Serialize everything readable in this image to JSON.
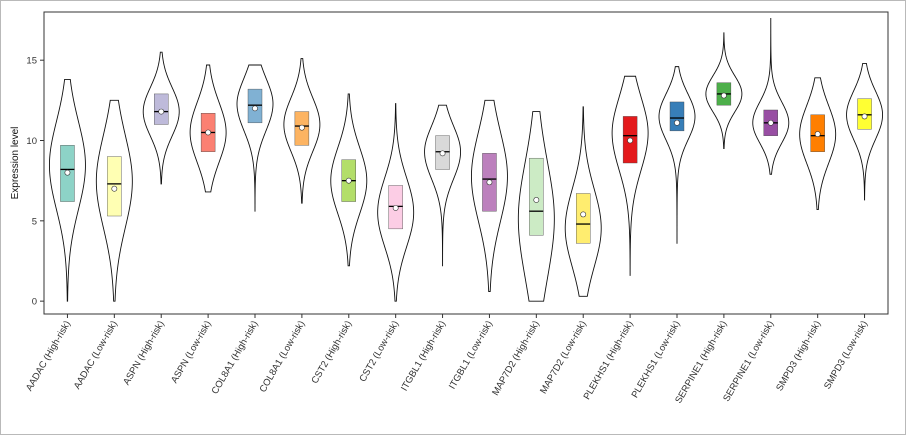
{
  "chart_data": {
    "type": "violin",
    "title": "",
    "xlabel": "",
    "ylabel": "Expression level",
    "ylim": [
      -0.8,
      18
    ],
    "yticks": [
      0,
      5,
      10,
      15
    ],
    "grid": false,
    "legend": "none",
    "categories": [
      "AADAC (High-risk)",
      "AADAC (Low-risk)",
      "ASPN (High-risk)",
      "ASPN (Low-risk)",
      "COL8A1 (High-risk)",
      "COL8A1 (Low-risk)",
      "CST2 (High-risk)",
      "CST2 (Low-risk)",
      "ITGBL1 (High-risk)",
      "ITGBL1 (Low-risk)",
      "MAP7D2 (High-risk)",
      "MAP7D2 (Low-risk)",
      "PLEKHS1 (High-risk)",
      "PLEKHS1 (Low-risk)",
      "SERPINE1 (High-risk)",
      "SERPINE1 (Low-risk)",
      "SMPD3 (High-risk)",
      "SMPD3 (Low-risk)"
    ],
    "series": [
      {
        "color": "#8dd3c7",
        "min": 0.0,
        "q1": 6.2,
        "median": 8.2,
        "q3": 9.7,
        "max": 13.8,
        "mean": 8.0,
        "mode": 8.5
      },
      {
        "color": "#ffffb3",
        "min": 0.0,
        "q1": 5.3,
        "median": 7.3,
        "q3": 9.0,
        "max": 12.5,
        "mean": 7.0,
        "mode": 7.5
      },
      {
        "color": "#bebada",
        "min": 7.3,
        "q1": 11.0,
        "median": 11.8,
        "q3": 12.9,
        "max": 15.5,
        "mean": 11.8,
        "mode": 11.8
      },
      {
        "color": "#fb8072",
        "min": 6.8,
        "q1": 9.3,
        "median": 10.5,
        "q3": 11.7,
        "max": 14.7,
        "mean": 10.5,
        "mode": 10.5
      },
      {
        "color": "#80b1d3",
        "min": 5.6,
        "q1": 11.1,
        "median": 12.2,
        "q3": 13.2,
        "max": 14.7,
        "mean": 12.0,
        "mode": 12.3
      },
      {
        "color": "#fdb462",
        "min": 6.1,
        "q1": 9.7,
        "median": 10.9,
        "q3": 11.8,
        "max": 15.1,
        "mean": 10.8,
        "mode": 11.0
      },
      {
        "color": "#b3de69",
        "min": 2.2,
        "q1": 6.2,
        "median": 7.5,
        "q3": 8.8,
        "max": 12.9,
        "mean": 7.5,
        "mode": 7.5
      },
      {
        "color": "#fccde5",
        "min": 0.0,
        "q1": 4.5,
        "median": 5.9,
        "q3": 7.2,
        "max": 12.3,
        "mean": 5.8,
        "mode": 5.5
      },
      {
        "color": "#d9d9d9",
        "min": 2.2,
        "q1": 8.2,
        "median": 9.3,
        "q3": 10.3,
        "max": 12.2,
        "mean": 9.2,
        "mode": 9.3
      },
      {
        "color": "#bc80bd",
        "min": 0.6,
        "q1": 5.6,
        "median": 7.6,
        "q3": 9.2,
        "max": 12.5,
        "mean": 7.4,
        "mode": 7.8
      },
      {
        "color": "#ccebc5",
        "min": 0.0,
        "q1": 4.1,
        "median": 5.6,
        "q3": 8.9,
        "max": 11.8,
        "mean": 6.3,
        "mode": 5.0
      },
      {
        "color": "#ffed6f",
        "min": 0.3,
        "q1": 3.6,
        "median": 4.8,
        "q3": 6.7,
        "max": 12.1,
        "mean": 5.4,
        "mode": 4.5
      },
      {
        "color": "#e41a1c",
        "min": 1.6,
        "q1": 8.6,
        "median": 10.3,
        "q3": 11.5,
        "max": 14.0,
        "mean": 10.0,
        "mode": 10.5
      },
      {
        "color": "#377eb8",
        "min": 3.6,
        "q1": 10.6,
        "median": 11.4,
        "q3": 12.4,
        "max": 14.6,
        "mean": 11.1,
        "mode": 11.5
      },
      {
        "color": "#4daf4a",
        "min": 9.5,
        "q1": 12.2,
        "median": 12.9,
        "q3": 13.6,
        "max": 16.7,
        "mean": 12.8,
        "mode": 12.9
      },
      {
        "color": "#984ea3",
        "min": 7.9,
        "q1": 10.3,
        "median": 11.1,
        "q3": 11.9,
        "max": 17.6,
        "mean": 11.1,
        "mode": 11.1
      },
      {
        "color": "#ff7f00",
        "min": 5.7,
        "q1": 9.3,
        "median": 10.3,
        "q3": 11.6,
        "max": 13.9,
        "mean": 10.4,
        "mode": 10.4
      },
      {
        "color": "#ffff33",
        "min": 6.3,
        "q1": 10.7,
        "median": 11.6,
        "q3": 12.6,
        "max": 14.8,
        "mean": 11.5,
        "mode": 11.6
      }
    ]
  }
}
